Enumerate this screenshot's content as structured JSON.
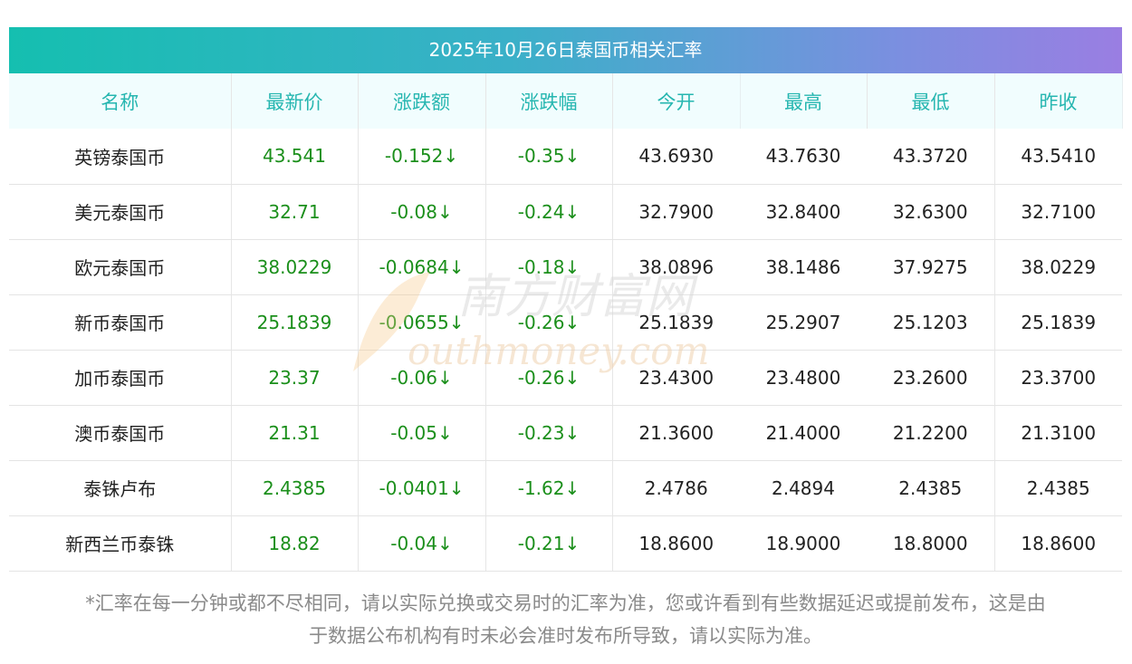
{
  "title": "2025年10月26日泰国币相关汇率",
  "headers": [
    "名称",
    "最新价",
    "涨跌额",
    "涨跌幅",
    "今开",
    "最高",
    "最低",
    "昨收"
  ],
  "rows": [
    [
      "英镑泰国币",
      "43.541",
      "-0.152↓",
      "-0.35↓",
      "43.6930",
      "43.7630",
      "43.3720",
      "43.5410"
    ],
    [
      "美元泰国币",
      "32.71",
      "-0.08↓",
      "-0.24↓",
      "32.7900",
      "32.8400",
      "32.6300",
      "32.7100"
    ],
    [
      "欧元泰国币",
      "38.0229",
      "-0.0684↓",
      "-0.18↓",
      "38.0896",
      "38.1486",
      "37.9275",
      "38.0229"
    ],
    [
      "新币泰国币",
      "25.1839",
      "-0.0655↓",
      "-0.26↓",
      "25.1839",
      "25.2907",
      "25.1203",
      "25.1839"
    ],
    [
      "加币泰国币",
      "23.37",
      "-0.06↓",
      "-0.26↓",
      "23.4300",
      "23.4800",
      "23.2600",
      "23.3700"
    ],
    [
      "澳币泰国币",
      "21.31",
      "-0.05↓",
      "-0.23↓",
      "21.3600",
      "21.4000",
      "21.2200",
      "21.3100"
    ],
    [
      "泰铢卢布",
      "2.4385",
      "-0.0401↓",
      "-1.62↓",
      "2.4786",
      "2.4894",
      "2.4385",
      "2.4385"
    ],
    [
      "新西兰币泰铢",
      "18.82",
      "-0.04↓",
      "-0.21↓",
      "18.8600",
      "18.9000",
      "18.8000",
      "18.8600"
    ]
  ],
  "footnote_line1": "*汇率在每一分钟或都不尽相同，请以实际兑换或交易时的汇率为准，您或许看到有些数据延迟或提前发布，这是由",
  "footnote_line2": "于数据公布机构有时未必会准时发布所导致，请以实际为准。",
  "watermark": {
    "cn": "南方财富网",
    "en": "outhmoney.com"
  },
  "colors": {
    "header_text": "#26b6b0",
    "value_green": "#1b8f1b",
    "title_gradient_start": "#15bfb0",
    "title_gradient_end": "#9a7ee2"
  }
}
